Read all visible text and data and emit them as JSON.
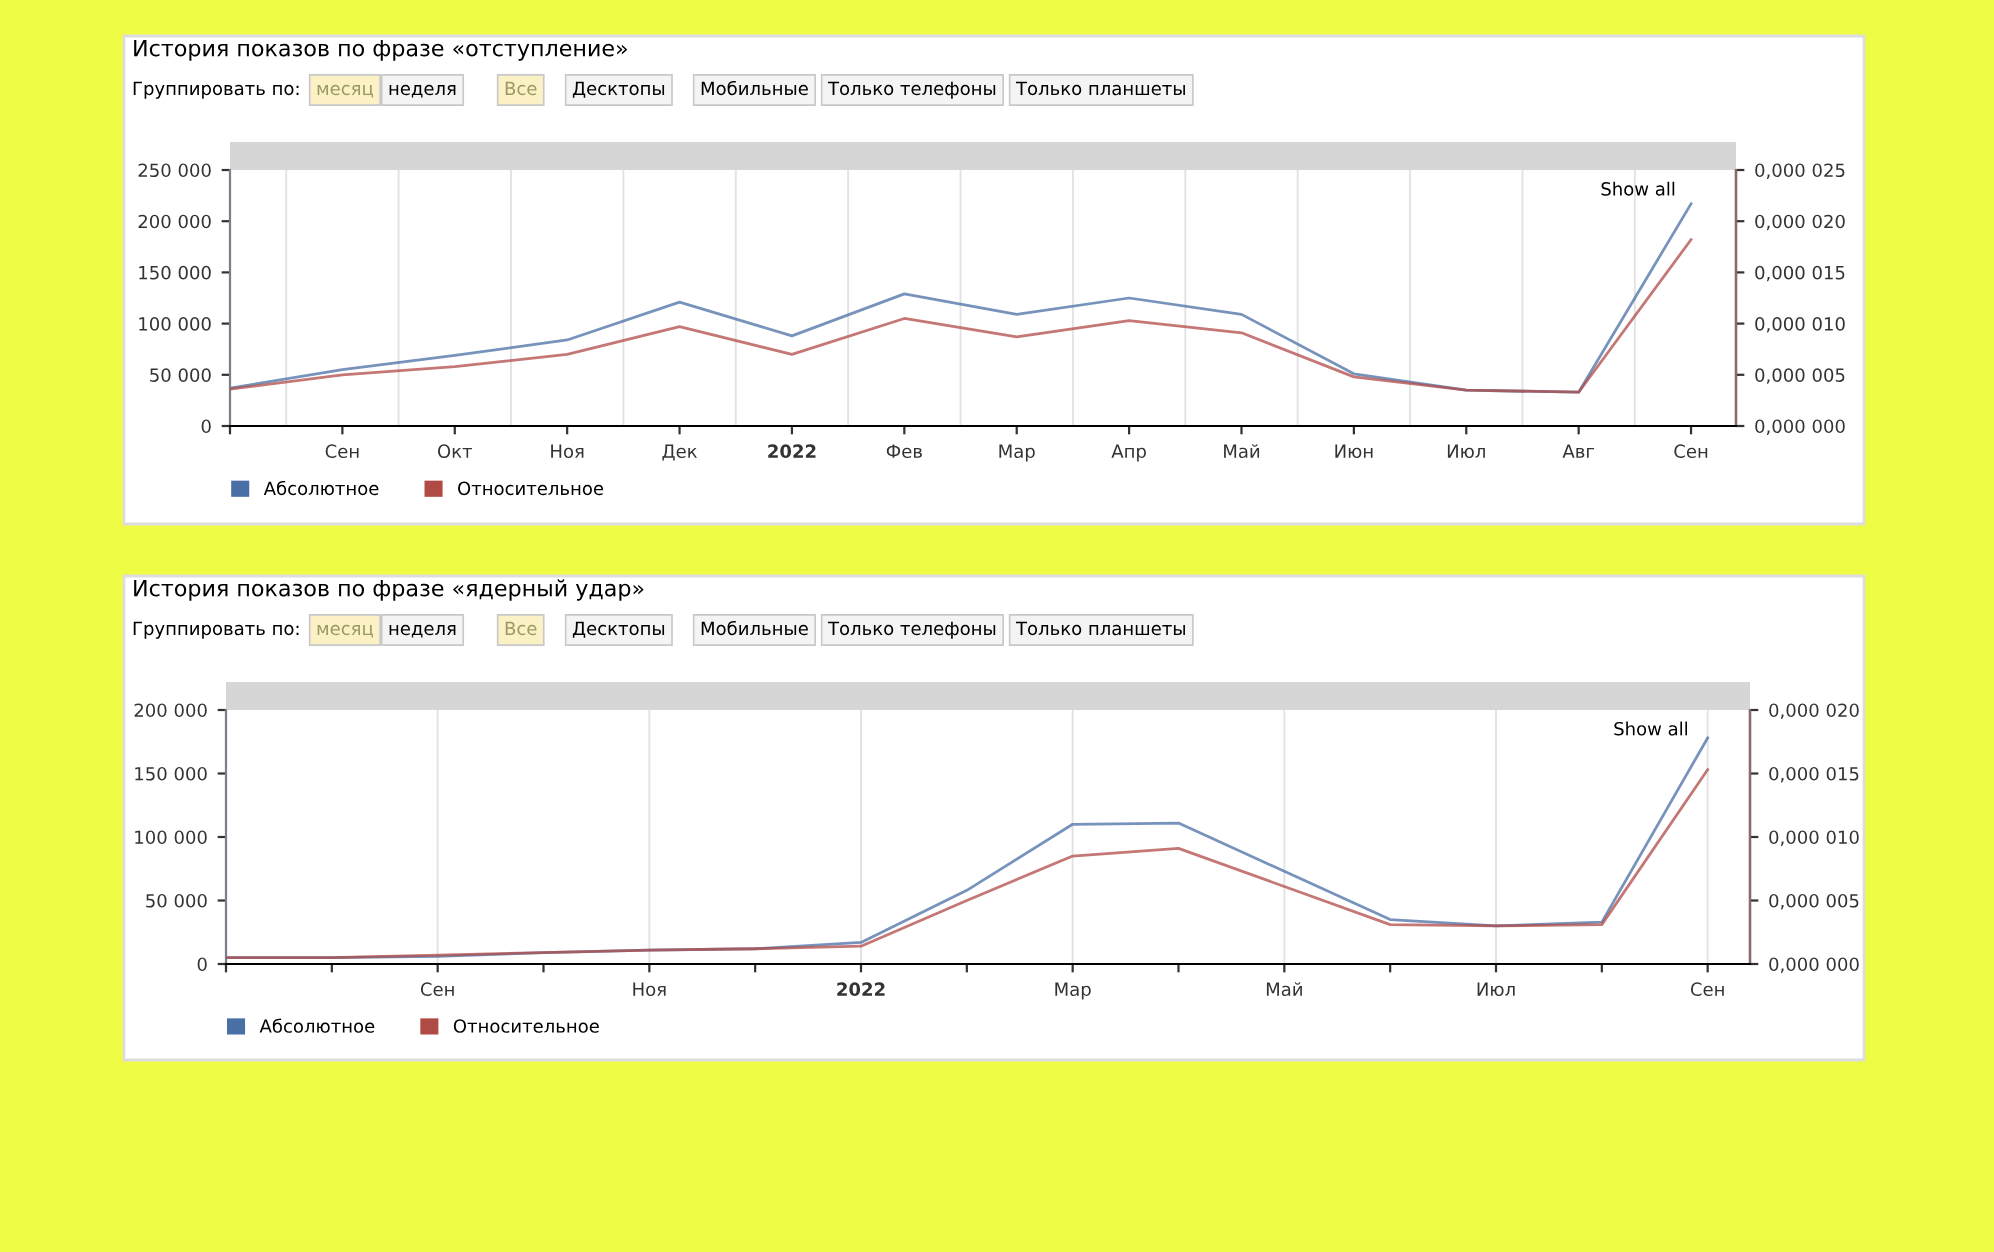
{
  "chart_data": [
    {
      "type": "line",
      "title": "История показов по фразе «отступление»",
      "annotations": [
        "Группировать по:",
        "месяц",
        "неделя",
        "Все",
        "Десктопы",
        "Мобильные",
        "Только телефоны",
        "Только планшеты",
        "Show all"
      ],
      "categories": [
        null,
        "Сен",
        "Окт",
        "Ноя",
        "Дек",
        "2022",
        "Фев",
        "Мар",
        "Апр",
        "Май",
        "Июн",
        "Июл",
        "Авг",
        "Сен"
      ],
      "series": [
        {
          "name": "Абсолютное",
          "color": "#4a6fa5",
          "values": [
            37000,
            55000,
            69000,
            84000,
            121000,
            88000,
            129000,
            109000,
            125000,
            109000,
            51000,
            35000,
            33000,
            217000
          ]
        },
        {
          "name": "Относительное",
          "color": "#b04a45",
          "axis": "y2",
          "values": [
            3.6e-06,
            5e-06,
            5.8e-06,
            7e-06,
            9.7e-06,
            7e-06,
            1.05e-05,
            8.7e-06,
            1.03e-05,
            9.1e-06,
            4.8e-06,
            3.5e-06,
            3.3e-06,
            1.82e-05
          ]
        }
      ],
      "ylim": [
        0,
        250000
      ],
      "yticks": [
        0,
        {
          "value": 50000,
          "label": "50 000"
        },
        {
          "value": 100000,
          "label": "100 000"
        },
        {
          "value": 150000,
          "label": "150 000"
        },
        {
          "value": 200000,
          "label": "200 000"
        },
        {
          "value": 250000,
          "label": "250 000"
        }
      ],
      "y2lim": [
        0,
        2.5e-05
      ],
      "y2ticks": [
        {
          "value": 0,
          "label": "0,000 000"
        },
        {
          "value": 5e-06,
          "label": "0,000 005"
        },
        {
          "value": 1e-05,
          "label": "0,000 010"
        },
        {
          "value": 1.5e-05,
          "label": "0,000 015"
        },
        {
          "value": 2e-05,
          "label": "0,000 020"
        },
        {
          "value": 2.5e-05,
          "label": "0,000 025"
        }
      ],
      "grid": "x",
      "legend": "bottom"
    },
    {
      "type": "line",
      "title": "История показов по фразе «ядерный удар»",
      "annotations": [
        "Группировать по:",
        "месяц",
        "неделя",
        "Все",
        "Десктопы",
        "Мобильные",
        "Только телефоны",
        "Только планшеты",
        "Show all"
      ],
      "categories": [
        null,
        null,
        "Сен",
        null,
        "Ноя",
        null,
        "2022",
        null,
        "Мар",
        null,
        "Май",
        null,
        "Июл",
        null,
        "Сен"
      ],
      "series": [
        {
          "name": "Абсолютное",
          "color": "#4a6fa5",
          "values": [
            5000,
            5000,
            6000,
            9000,
            11000,
            12000,
            17000,
            58000,
            110000,
            111000,
            73000,
            35000,
            30000,
            33000,
            178000
          ]
        },
        {
          "name": "Относительное",
          "color": "#b04a45",
          "axis": "y2",
          "values": [
            5e-07,
            5e-07,
            7e-07,
            9e-07,
            1.1e-06,
            1.2e-06,
            1.4e-06,
            5e-06,
            8.5e-06,
            9.1e-06,
            6.1e-06,
            3.1e-06,
            3e-06,
            3.1e-06,
            1.53e-05
          ]
        }
      ],
      "ylim": [
        0,
        200000
      ],
      "yticks": [
        0,
        {
          "value": 50000,
          "label": "50 000"
        },
        {
          "value": 100000,
          "label": "100 000"
        },
        {
          "value": 150000,
          "label": "150 000"
        },
        {
          "value": 200000,
          "label": "200 000"
        }
      ],
      "y2lim": [
        0,
        2e-05
      ],
      "y2ticks": [
        {
          "value": 0,
          "label": "0,000 000"
        },
        {
          "value": 5e-06,
          "label": "0,000 005"
        },
        {
          "value": 1e-05,
          "label": "0,000 010"
        },
        {
          "value": 1.5e-05,
          "label": "0,000 015"
        },
        {
          "value": 2e-05,
          "label": "0,000 020"
        }
      ],
      "grid": "x",
      "legend": "bottom"
    }
  ]
}
